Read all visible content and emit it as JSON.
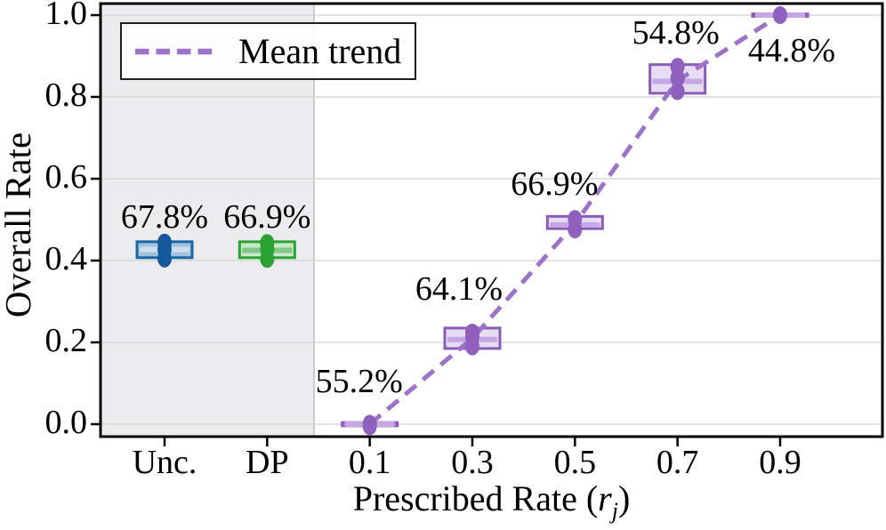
{
  "axes": {
    "ylabel": "Overall Rate",
    "xlabel": {
      "prefix": "Prescribed Rate (",
      "var": "r",
      "sub": "j",
      "suffix": ")"
    }
  },
  "legend": {
    "label": "Mean trend"
  },
  "chart_data": {
    "type": "boxplot",
    "title": "",
    "xlabel": "Prescribed Rate (r_j)",
    "ylabel": "Overall Rate",
    "categories": [
      "Unc.",
      "DP",
      "0.1",
      "0.3",
      "0.5",
      "0.7",
      "0.9"
    ],
    "y_ticks": [
      "0.0",
      "0.2",
      "0.4",
      "0.6",
      "0.8",
      "1.0"
    ],
    "y_tick_values": [
      0.0,
      0.2,
      0.4,
      0.6,
      0.8,
      1.0
    ],
    "ylim": [
      -0.03,
      1.03
    ],
    "grid": "horizontal",
    "legend_position": "upper left",
    "legend_entries": [
      "Mean trend"
    ],
    "shaded_categories": [
      "Unc.",
      "DP"
    ],
    "boxes": [
      {
        "category": "Unc.",
        "color_key": "blue",
        "q1": 0.407,
        "median": 0.427,
        "q3": 0.446,
        "points": [
          0.405,
          0.428,
          0.444
        ],
        "annotation": "67.8%"
      },
      {
        "category": "DP",
        "color_key": "green",
        "q1": 0.407,
        "median": 0.425,
        "q3": 0.446,
        "points": [
          0.404,
          0.427,
          0.443
        ],
        "annotation": "66.9%"
      },
      {
        "category": "0.1",
        "color_key": "purple",
        "q1": -0.004,
        "median": 0.0,
        "q3": 0.004,
        "points": [
          0.001,
          -0.005
        ],
        "annotation": "55.2%"
      },
      {
        "category": "0.3",
        "color_key": "purple",
        "q1": 0.185,
        "median": 0.207,
        "q3": 0.235,
        "points": [
          0.19,
          0.214,
          0.224
        ],
        "annotation": "64.1%"
      },
      {
        "category": "0.5",
        "color_key": "purple",
        "q1": 0.478,
        "median": 0.487,
        "q3": 0.508,
        "points": [
          0.476,
          0.502
        ],
        "annotation": "66.9%"
      },
      {
        "category": "0.7",
        "color_key": "purple",
        "q1": 0.809,
        "median": 0.838,
        "q3": 0.879,
        "points": [
          0.814,
          0.846,
          0.874
        ],
        "annotation": "54.8%"
      },
      {
        "category": "0.9",
        "color_key": "purple",
        "q1": 0.997,
        "median": 1.0,
        "q3": 1.003,
        "points": [
          1.0
        ],
        "annotation": "44.8%"
      }
    ],
    "mean_trend": {
      "label": "Mean trend",
      "categories": [
        "0.1",
        "0.3",
        "0.5",
        "0.7",
        "0.9"
      ],
      "values": [
        0.0,
        0.21,
        0.49,
        0.84,
        1.0
      ]
    },
    "colors": {
      "blue": {
        "edge": "#1a66a8",
        "fill": "#a2c1dc",
        "median": "#d0dfee",
        "dot": "#15599c"
      },
      "green": {
        "edge": "#2ba233",
        "fill": "#c9e7ca",
        "median": "#83c787",
        "dot": "#2ba233"
      },
      "purple": {
        "edge": "#8a5cb8",
        "fill": "#e7ddf3",
        "median": "#c4a7e3",
        "dot": "#8f60bd",
        "line": "#9e72c8"
      },
      "shade": "#ececee",
      "shade_edge": "#c8cdd4",
      "grid": "#d8d8d8",
      "spine": "#000000"
    }
  }
}
